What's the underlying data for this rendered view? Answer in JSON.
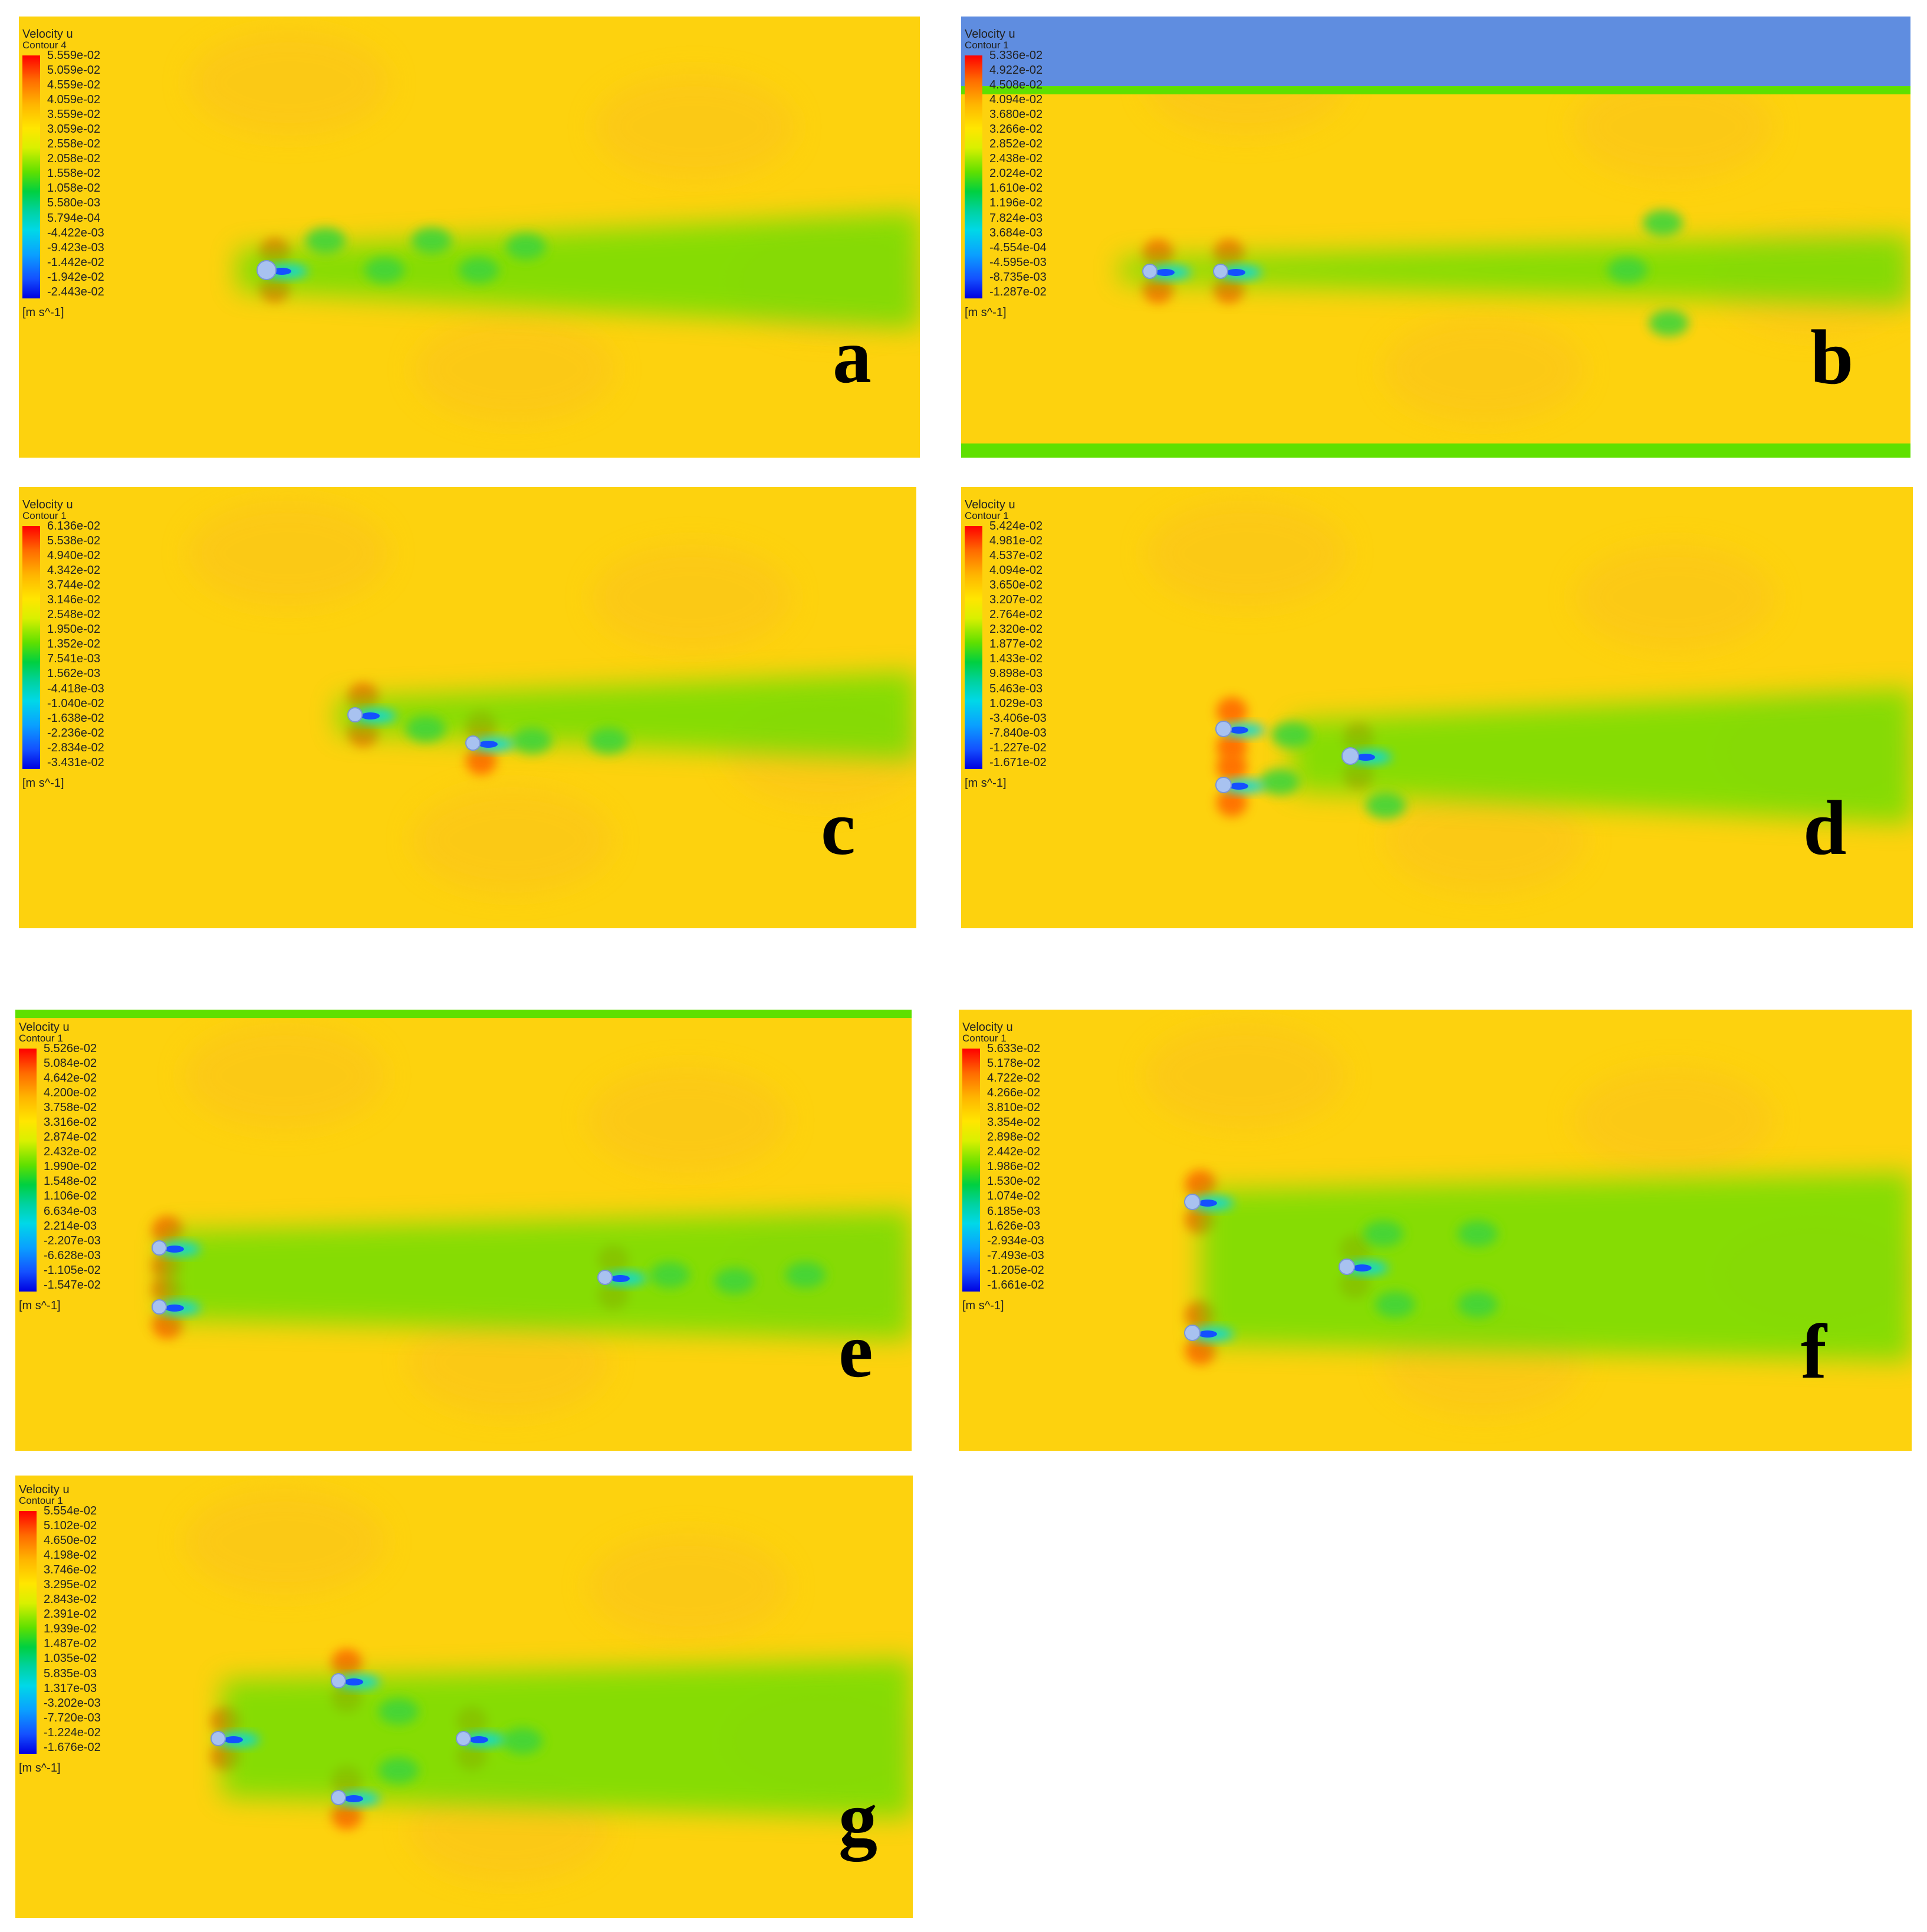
{
  "figure": {
    "colors": {
      "field_bg": "#fdd20e",
      "wake": "#5fe000",
      "core": "#00d8e8",
      "reverse": "#1450ff",
      "high": "#ff6a00",
      "wall": "#5f8de0"
    },
    "panels": [
      {
        "tag": "a",
        "legend": {
          "title": "Velocity u",
          "subtitle": "Contour 4",
          "values": [
            "5.559e-02",
            "5.059e-02",
            "4.559e-02",
            "4.059e-02",
            "3.559e-02",
            "3.059e-02",
            "2.558e-02",
            "2.058e-02",
            "1.558e-02",
            "1.058e-02",
            "5.580e-03",
            "5.794e-04",
            "-4.422e-03",
            "-9.423e-03",
            "-1.442e-02",
            "-1.942e-02",
            "-2.443e-02"
          ],
          "unit": "[m s^-1]"
        }
      },
      {
        "tag": "b",
        "legend": {
          "title": "Velocity u",
          "subtitle": "Contour 1",
          "values": [
            "5.336e-02",
            "4.922e-02",
            "4.508e-02",
            "4.094e-02",
            "3.680e-02",
            "3.266e-02",
            "2.852e-02",
            "2.438e-02",
            "2.024e-02",
            "1.610e-02",
            "1.196e-02",
            "7.824e-03",
            "3.684e-03",
            "-4.554e-04",
            "-4.595e-03",
            "-8.735e-03",
            "-1.287e-02"
          ],
          "unit": "[m s^-1]"
        }
      },
      {
        "tag": "c",
        "legend": {
          "title": "Velocity u",
          "subtitle": "Contour 1",
          "values": [
            "6.136e-02",
            "5.538e-02",
            "4.940e-02",
            "4.342e-02",
            "3.744e-02",
            "3.146e-02",
            "2.548e-02",
            "1.950e-02",
            "1.352e-02",
            "7.541e-03",
            "1.562e-03",
            "-4.418e-03",
            "-1.040e-02",
            "-1.638e-02",
            "-2.236e-02",
            "-2.834e-02",
            "-3.431e-02"
          ],
          "unit": "[m s^-1]"
        }
      },
      {
        "tag": "d",
        "legend": {
          "title": "Velocity u",
          "subtitle": "Contour 1",
          "values": [
            "5.424e-02",
            "4.981e-02",
            "4.537e-02",
            "4.094e-02",
            "3.650e-02",
            "3.207e-02",
            "2.764e-02",
            "2.320e-02",
            "1.877e-02",
            "1.433e-02",
            "9.898e-03",
            "5.463e-03",
            "1.029e-03",
            "-3.406e-03",
            "-7.840e-03",
            "-1.227e-02",
            "-1.671e-02"
          ],
          "unit": "[m s^-1]"
        }
      },
      {
        "tag": "e",
        "legend": {
          "title": "Velocity u",
          "subtitle": "Contour 1",
          "values": [
            "5.526e-02",
            "5.084e-02",
            "4.642e-02",
            "4.200e-02",
            "3.758e-02",
            "3.316e-02",
            "2.874e-02",
            "2.432e-02",
            "1.990e-02",
            "1.548e-02",
            "1.106e-02",
            "6.634e-03",
            "2.214e-03",
            "-2.207e-03",
            "-6.628e-03",
            "-1.105e-02",
            "-1.547e-02"
          ],
          "unit": "[m s^-1]"
        }
      },
      {
        "tag": "f",
        "legend": {
          "title": "Velocity u",
          "subtitle": "Contour 1",
          "values": [
            "5.633e-02",
            "5.178e-02",
            "4.722e-02",
            "4.266e-02",
            "3.810e-02",
            "3.354e-02",
            "2.898e-02",
            "2.442e-02",
            "1.986e-02",
            "1.530e-02",
            "1.074e-02",
            "6.185e-03",
            "1.626e-03",
            "-2.934e-03",
            "-7.493e-03",
            "-1.205e-02",
            "-1.661e-02"
          ],
          "unit": "[m s^-1]"
        }
      },
      {
        "tag": "g",
        "legend": {
          "title": "Velocity u",
          "subtitle": "Contour 1",
          "values": [
            "5.554e-02",
            "5.102e-02",
            "4.650e-02",
            "4.198e-02",
            "3.746e-02",
            "3.295e-02",
            "2.843e-02",
            "2.391e-02",
            "1.939e-02",
            "1.487e-02",
            "1.035e-02",
            "5.835e-03",
            "1.317e-03",
            "-3.202e-03",
            "-7.720e-03",
            "-1.224e-02",
            "-1.676e-02"
          ],
          "unit": "[m s^-1]"
        }
      }
    ]
  }
}
